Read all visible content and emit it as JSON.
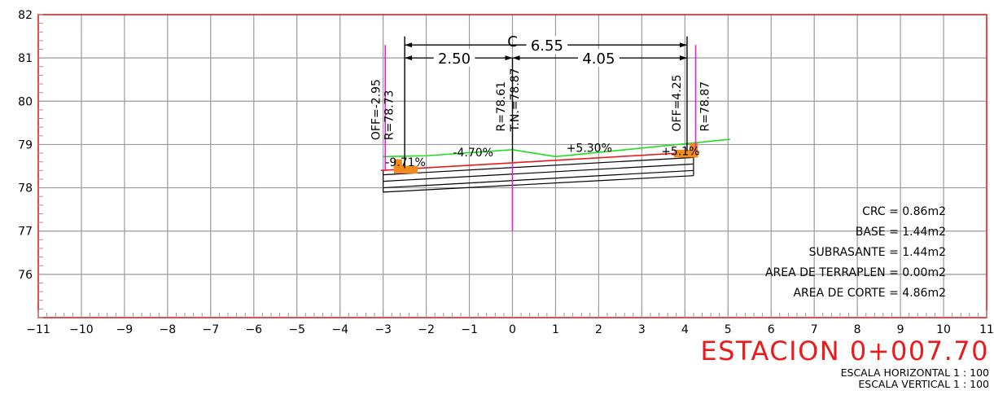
{
  "station": {
    "title": "ESTACION 0+007.70",
    "scale_horizontal": "ESCALA HORIZONTAL 1 : 100",
    "scale_vertical": "ESCALA VERTICAL 1 : 100"
  },
  "axes": {
    "x_ticks": [
      -11,
      -10,
      -9,
      -8,
      -7,
      -6,
      -5,
      -4,
      -3,
      -2,
      -1,
      0,
      1,
      2,
      3,
      4,
      5,
      6,
      7,
      8,
      9,
      10,
      11
    ],
    "y_ticks": [
      82,
      81,
      80,
      79,
      78,
      77,
      76
    ],
    "x_range": [
      -11,
      11
    ],
    "y_range": [
      75,
      82
    ],
    "grid": true
  },
  "labels": {
    "left_offset": "OFF=-2.95",
    "left_elevation": "R=78.73",
    "center_elevation": "R=78.61",
    "natural_terrain": "T.N.=78.87",
    "right_offset": "OFF=4.25",
    "right_elevation": "R=78.87",
    "centerline_mark": "C",
    "slope_left_shoulder": "-9.71%",
    "slope_left": "-4.70%",
    "slope_right": "+5.30%",
    "slope_right_shoulder": "+5.1%"
  },
  "dimensions": {
    "total_width": "6.55",
    "left_width": "2.50",
    "right_width": "4.05"
  },
  "areas": [
    "CRC = 0.86m2",
    "BASE = 1.44m2",
    "SUBRASANTE = 1.44m2",
    "AREA DE TERRAPLEN = 0.00m2",
    "AREA DE CORTE = 4.86m2"
  ],
  "colors": {
    "frame": "#e81c1c",
    "grid": "#9a9a9a",
    "terrain": "#22dd22",
    "subgrade": "#e81c1c",
    "offset_marks": "#dd22dd",
    "curbs": "#f28a1c",
    "text": "#000000",
    "title": "#e81c1c"
  },
  "geometry": {
    "terrain": [
      [
        -3,
        78.72
      ],
      [
        -2,
        78.74
      ],
      [
        0,
        78.88
      ],
      [
        1,
        78.72
      ],
      [
        5.05,
        79.12
      ]
    ],
    "subgrade": [
      [
        -3.05,
        78.4
      ],
      [
        4.2,
        78.82
      ]
    ],
    "pavement_layers": [
      [
        78.3,
        78.7
      ],
      [
        78.15,
        78.55
      ],
      [
        78.0,
        78.4
      ],
      [
        77.9,
        78.28
      ]
    ],
    "layer_x_range": [
      -3,
      4.2
    ],
    "offsets": {
      "left": -2.95,
      "right": 4.25,
      "center": 0
    },
    "magenta_verticals": [
      [
        -2.95,
        78.4,
        81.3
      ],
      [
        0,
        77.0,
        78.55
      ],
      [
        4.25,
        78.85,
        81.3
      ]
    ],
    "curbs": [
      [
        -2.75,
        78.33,
        0.55,
        0.18
      ],
      [
        3.75,
        78.7,
        0.55,
        0.18
      ]
    ]
  }
}
